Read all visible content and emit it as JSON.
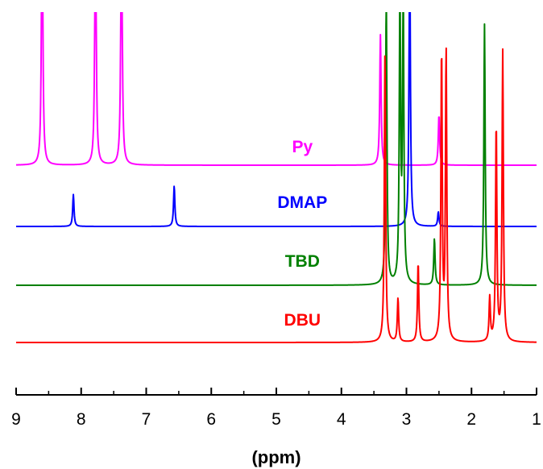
{
  "chart_data": {
    "type": "line",
    "title": "",
    "xlabel": "(ppm)",
    "ylabel": "",
    "x_reversed": true,
    "xlim": [
      9,
      1
    ],
    "xticks": [
      9,
      8,
      7,
      6,
      5,
      4,
      3,
      2,
      1
    ],
    "grid": false,
    "legend": "none",
    "series": [
      {
        "name": "Py",
        "color": "#ff00ff",
        "label_ppm": 4.6,
        "peaks": [
          {
            "ppm": 8.6,
            "height": 2.0
          },
          {
            "ppm": 7.78,
            "height": 2.0
          },
          {
            "ppm": 7.38,
            "height": 2.0
          },
          {
            "ppm": 3.4,
            "height": 0.9
          },
          {
            "ppm": 2.5,
            "height": 0.35
          }
        ]
      },
      {
        "name": "DMAP",
        "color": "#0000ff",
        "label_ppm": 4.6,
        "peaks": [
          {
            "ppm": 8.12,
            "height": 0.22
          },
          {
            "ppm": 6.57,
            "height": 0.28
          },
          {
            "ppm": 2.95,
            "height": 2.0
          },
          {
            "ppm": 2.51,
            "height": 0.1
          }
        ]
      },
      {
        "name": "TBD",
        "color": "#008000",
        "label_ppm": 4.6,
        "peaks": [
          {
            "ppm": 3.31,
            "height": 2.0
          },
          {
            "ppm": 3.1,
            "height": 2.0
          },
          {
            "ppm": 3.05,
            "height": 2.0
          },
          {
            "ppm": 2.57,
            "height": 0.32
          },
          {
            "ppm": 1.8,
            "height": 1.8
          }
        ]
      },
      {
        "name": "DBU",
        "color": "#ff0000",
        "label_ppm": 4.6,
        "peaks": [
          {
            "ppm": 3.33,
            "height": 2.0
          },
          {
            "ppm": 3.13,
            "height": 0.3
          },
          {
            "ppm": 2.82,
            "height": 0.55
          },
          {
            "ppm": 2.46,
            "height": 2.0
          },
          {
            "ppm": 2.39,
            "height": 2.0
          },
          {
            "ppm": 1.62,
            "height": 1.5
          },
          {
            "ppm": 1.52,
            "height": 2.0
          },
          {
            "ppm": 1.72,
            "height": 0.3
          }
        ]
      }
    ]
  }
}
